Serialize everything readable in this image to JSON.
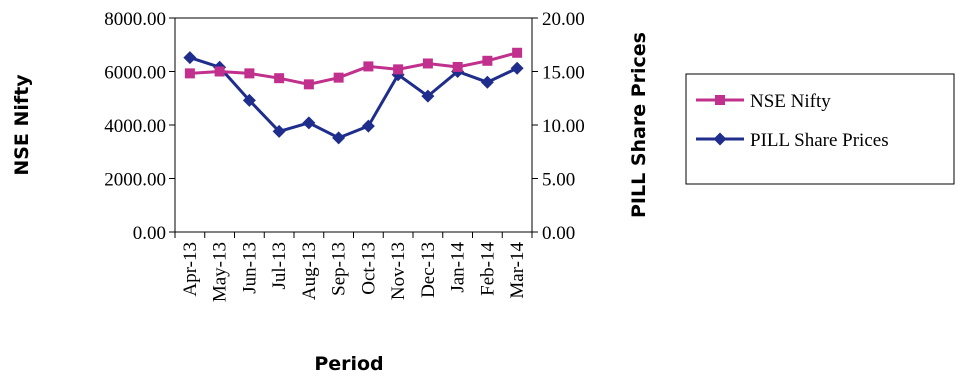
{
  "chart_data": {
    "type": "line",
    "title": "",
    "xlabel": "Period",
    "ylabel": "NSE Nifty",
    "y2label": "PILL Share Prices",
    "categories": [
      "Apr-13",
      "May-13",
      "Jun-13",
      "Jul-13",
      "Aug-13",
      "Sep-13",
      "Oct-13",
      "Nov-13",
      "Dec-13",
      "Jan-14",
      "Feb-14",
      "Mar-14"
    ],
    "ylim": [
      0,
      8000
    ],
    "y2lim": [
      0,
      20
    ],
    "y_ticks": [
      "0.00",
      "2000.00",
      "4000.00",
      "6000.00",
      "8000.00"
    ],
    "y2_ticks": [
      "0.00",
      "5.00",
      "10.00",
      "15.00",
      "20.00"
    ],
    "series": [
      {
        "name": "NSE Nifty",
        "axis": "left",
        "color": "#c0308c",
        "marker": "square",
        "values": [
          5930,
          6000,
          5930,
          5750,
          5520,
          5770,
          6190,
          6080,
          6300,
          6170,
          6400,
          6700
        ]
      },
      {
        "name": "PILL Share Prices",
        "axis": "right",
        "color": "#1f2d8c",
        "marker": "diamond",
        "values": [
          16.3,
          15.4,
          12.3,
          9.4,
          10.2,
          8.8,
          9.9,
          14.7,
          12.7,
          15.0,
          14.0,
          15.3
        ]
      }
    ],
    "grid": false,
    "legend": "right"
  }
}
